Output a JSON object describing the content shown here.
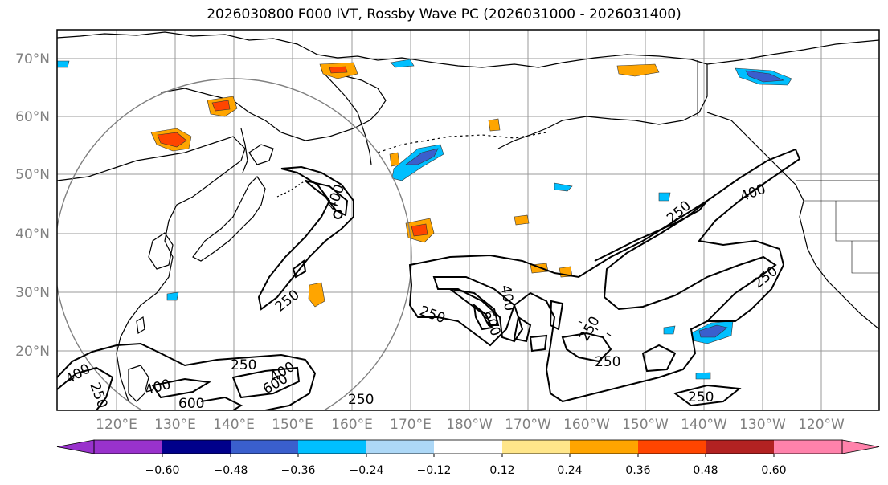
{
  "title": "2026030800 F000 IVT, Rossby Wave PC (2026031000 - 2026031400)",
  "lat_labels": [
    "70°N",
    "60°N",
    "50°N",
    "40°N",
    "30°N",
    "20°N"
  ],
  "lon_labels": [
    "120°E",
    "130°E",
    "140°E",
    "150°E",
    "160°E",
    "170°E",
    "180°W",
    "170°W",
    "160°W",
    "150°W",
    "140°W",
    "130°W",
    "120°W"
  ],
  "colorbar": {
    "ticks": [
      "−0.60",
      "−0.48",
      "−0.36",
      "−0.24",
      "−0.12",
      "0.12",
      "0.24",
      "0.36",
      "0.48",
      "0.60"
    ],
    "colors": [
      "#9932cc",
      "#00008b",
      "#3a5fcd",
      "#00bfff",
      "#add8f7",
      "#ffffff",
      "#ffe68a",
      "#ffa500",
      "#ff4500",
      "#b22222",
      "#ff82ab",
      "#ff82ab"
    ]
  },
  "contour_labels": [
    "400",
    "250",
    "400",
    "250",
    "600",
    "400",
    "250",
    "250",
    "400",
    "600",
    "250",
    "250",
    "250",
    "400",
    "250",
    "250",
    "250",
    "400",
    "600",
    "250"
  ]
}
